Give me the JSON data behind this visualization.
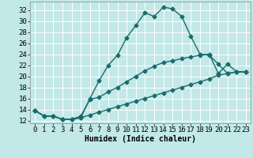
{
  "title": "",
  "xlabel": "Humidex (Indice chaleur)",
  "ylabel": "",
  "background_color": "#c2e8e8",
  "grid_color": "#ffffff",
  "line_color": "#1a6b6b",
  "xlim": [
    -0.5,
    23.5
  ],
  "ylim": [
    11.5,
    33.5
  ],
  "xticks": [
    0,
    1,
    2,
    3,
    4,
    5,
    6,
    7,
    8,
    9,
    10,
    11,
    12,
    13,
    14,
    15,
    16,
    17,
    18,
    19,
    20,
    21,
    22,
    23
  ],
  "yticks": [
    12,
    14,
    16,
    18,
    20,
    22,
    24,
    26,
    28,
    30,
    32
  ],
  "curve1_x": [
    0,
    1,
    2,
    3,
    4,
    5,
    6,
    7,
    8,
    9,
    10,
    11,
    12,
    13,
    14,
    15,
    16,
    17,
    18,
    19,
    20,
    21,
    22,
    23
  ],
  "curve1_y": [
    13.8,
    12.8,
    12.8,
    12.2,
    12.2,
    12.5,
    16.0,
    19.2,
    22.0,
    23.8,
    27.0,
    29.2,
    31.5,
    30.8,
    32.5,
    32.2,
    30.8,
    27.2,
    24.0,
    23.8,
    22.2,
    20.5,
    20.8,
    20.8
  ],
  "curve2_x": [
    0,
    1,
    2,
    3,
    4,
    5,
    6,
    7,
    8,
    9,
    10,
    11,
    12,
    13,
    14,
    15,
    16,
    17,
    18,
    19,
    20,
    21,
    22,
    23
  ],
  "curve2_y": [
    13.8,
    12.8,
    12.8,
    12.2,
    12.2,
    12.8,
    15.8,
    16.2,
    17.2,
    18.0,
    19.0,
    20.0,
    21.0,
    21.8,
    22.5,
    22.8,
    23.2,
    23.5,
    23.8,
    24.0,
    20.5,
    22.2,
    20.8,
    20.8
  ],
  "curve3_x": [
    0,
    1,
    2,
    3,
    4,
    5,
    6,
    7,
    8,
    9,
    10,
    11,
    12,
    13,
    14,
    15,
    16,
    17,
    18,
    19,
    20,
    21,
    22,
    23
  ],
  "curve3_y": [
    13.8,
    12.8,
    12.8,
    12.2,
    12.2,
    12.5,
    13.0,
    13.5,
    14.0,
    14.5,
    15.0,
    15.5,
    16.0,
    16.5,
    17.0,
    17.5,
    18.0,
    18.5,
    19.0,
    19.5,
    20.2,
    20.5,
    20.8,
    20.8
  ],
  "marker": "D",
  "markersize": 2.5,
  "linewidth": 1.0,
  "xlabel_fontsize": 7,
  "tick_fontsize": 6.5
}
